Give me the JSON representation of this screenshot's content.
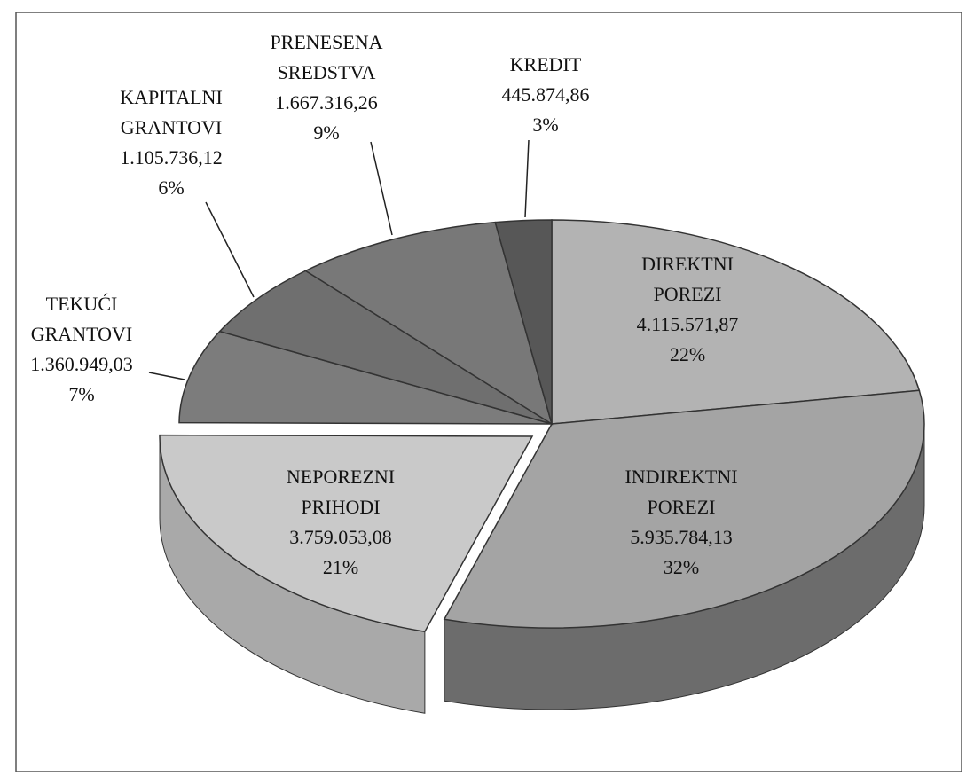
{
  "chart_data": {
    "type": "pie",
    "categories": [
      [
        "DIREKTNI",
        "POREZI"
      ],
      [
        "INDIREKTNI",
        "POREZI"
      ],
      [
        "NEPOREZNI",
        "PRIHODI"
      ],
      [
        "TEKUĆI",
        "GRANTOVI"
      ],
      [
        "KAPITALNI",
        "GRANTOVI"
      ],
      [
        "PRENESENA",
        "SREDSTVA"
      ],
      [
        "KREDIT"
      ]
    ],
    "values": [
      4115571.87,
      5935784.13,
      3759053.08,
      1360949.03,
      1105736.12,
      1667316.26,
      445874.86
    ],
    "value_labels": [
      "4.115.571,87",
      "5.935.784,13",
      "3.759.053,08",
      "1.360.949,03",
      "1.105.736,12",
      "1.667.316,26",
      "445.874,86"
    ],
    "percents": [
      22,
      32,
      21,
      7,
      6,
      9,
      3
    ],
    "percent_labels": [
      "22%",
      "32%",
      "21%",
      "7%",
      "6%",
      "9%",
      "3%"
    ],
    "colors": [
      "#b3b3b3",
      "#a4a4a4",
      "#c9c9c9",
      "#7c7c7c",
      "#6f6f6f",
      "#787878",
      "#575757"
    ],
    "side_colors": [
      "#8a8a8a",
      "#6c6c6c",
      "#a9a9a9",
      "#5c5c5c",
      "#555555",
      "#5a5a5a",
      "#444444"
    ],
    "exploded": [
      2
    ]
  }
}
